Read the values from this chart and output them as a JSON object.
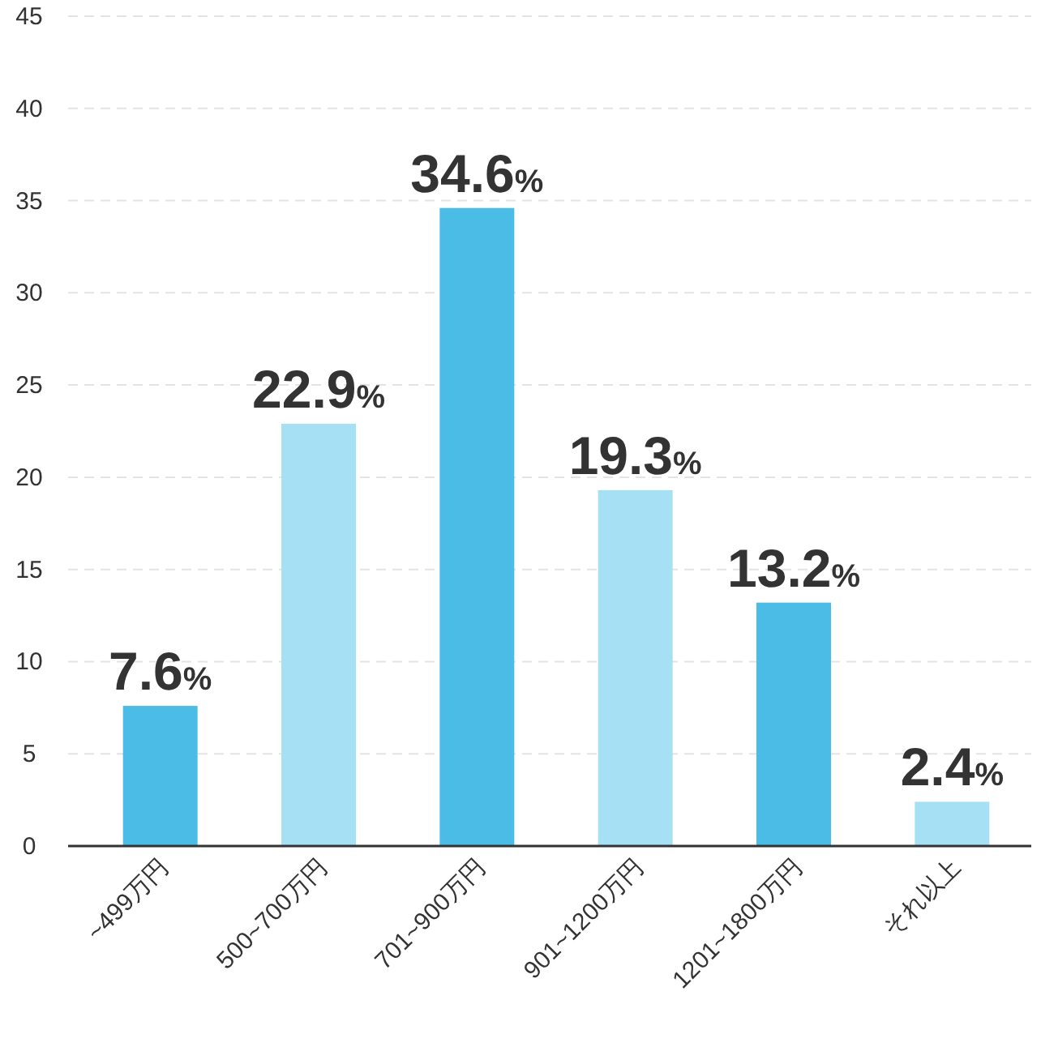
{
  "chart_data": {
    "type": "bar",
    "categories": [
      "~499万円",
      "500~700万円",
      "701~900万円",
      "901~1200万円",
      "1201~1800万円",
      "それ以上"
    ],
    "values": [
      7.6,
      22.9,
      34.6,
      19.3,
      13.2,
      2.4
    ],
    "colors": [
      "#4bbce6",
      "#a6e0f4",
      "#4bbce6",
      "#a6e0f4",
      "#4bbce6",
      "#a6e0f4"
    ],
    "value_labels": [
      "7.6%",
      "22.9%",
      "34.6%",
      "19.3%",
      "13.2%",
      "2.4%"
    ],
    "ylim": [
      0,
      45
    ],
    "yticks": [
      0,
      5,
      10,
      15,
      20,
      25,
      30,
      35,
      40,
      45
    ],
    "grid": "y"
  }
}
